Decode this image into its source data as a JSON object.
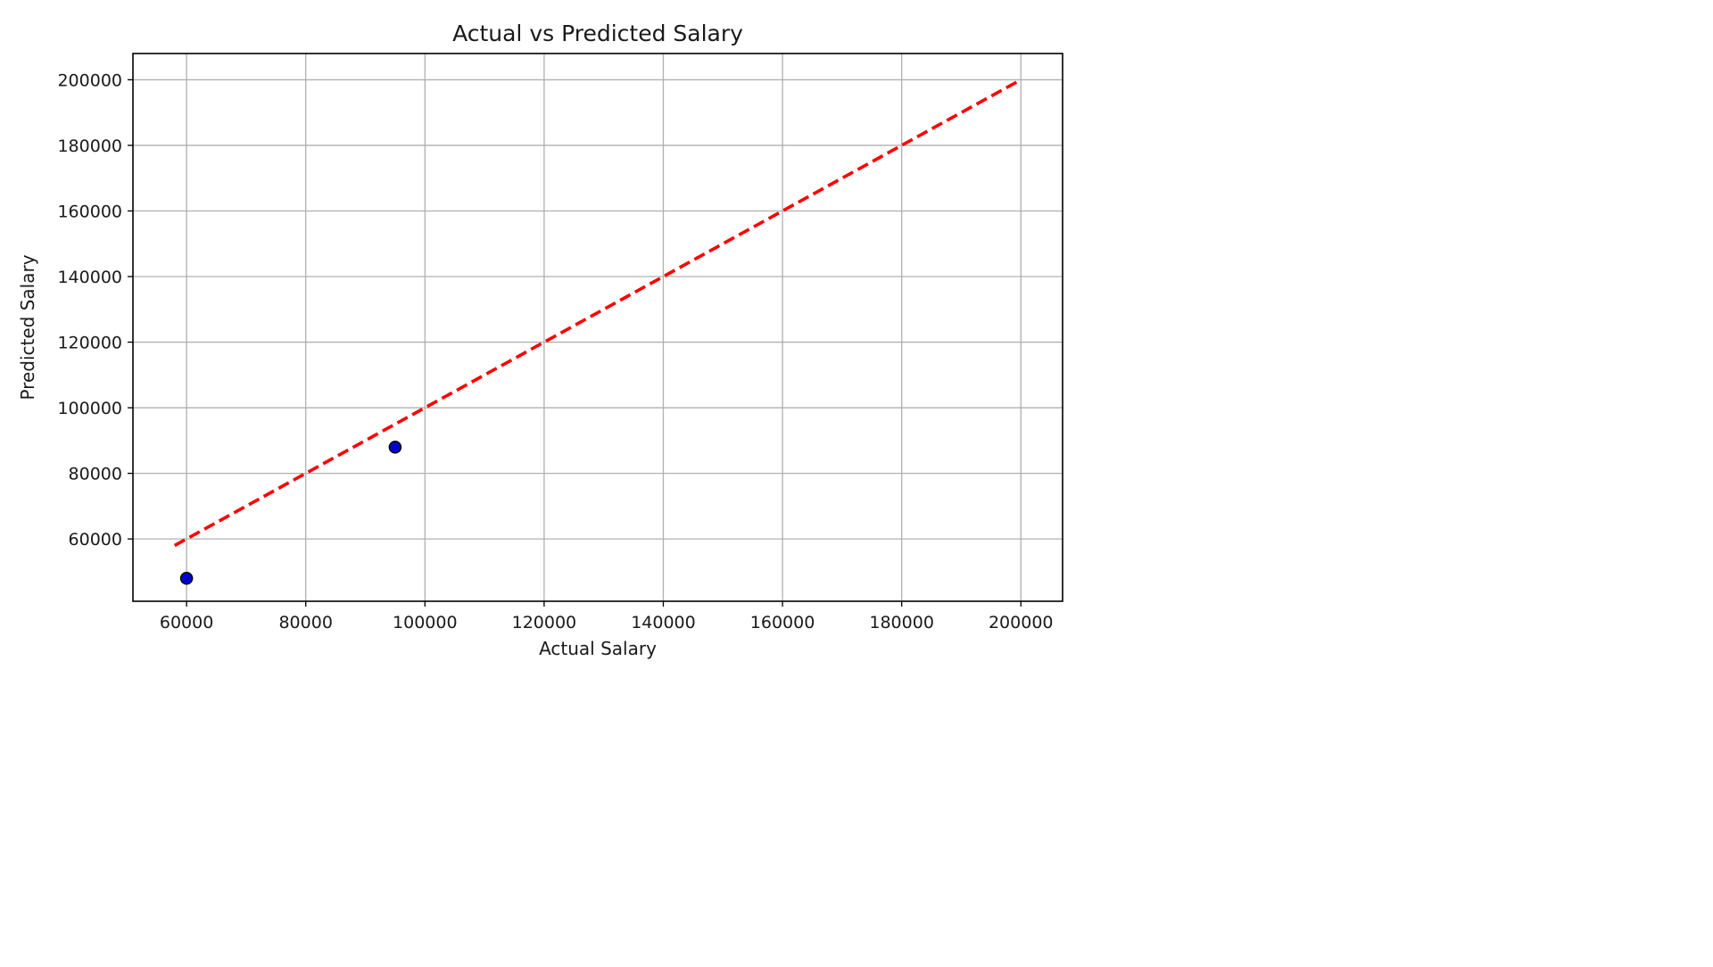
{
  "chart_data": {
    "type": "scatter",
    "title": "Actual vs Predicted Salary",
    "xlabel": "Actual Salary",
    "ylabel": "Predicted Salary",
    "xlim": [
      51000,
      207000
    ],
    "ylim": [
      41000,
      208000
    ],
    "xticks": [
      60000,
      80000,
      100000,
      120000,
      140000,
      160000,
      180000,
      200000
    ],
    "yticks": [
      60000,
      80000,
      100000,
      120000,
      140000,
      160000,
      180000,
      200000
    ],
    "grid": true,
    "series": [
      {
        "type": "scatter",
        "points": [
          {
            "x": 60000,
            "y": 48000
          },
          {
            "x": 95000,
            "y": 88000
          }
        ],
        "fill_color": "#0000cc",
        "edge_color": "#000000"
      }
    ],
    "reference_line": {
      "x": [
        58000,
        200000
      ],
      "y": [
        58000,
        200000
      ],
      "color": "#ff0000",
      "style": "dashed"
    }
  }
}
